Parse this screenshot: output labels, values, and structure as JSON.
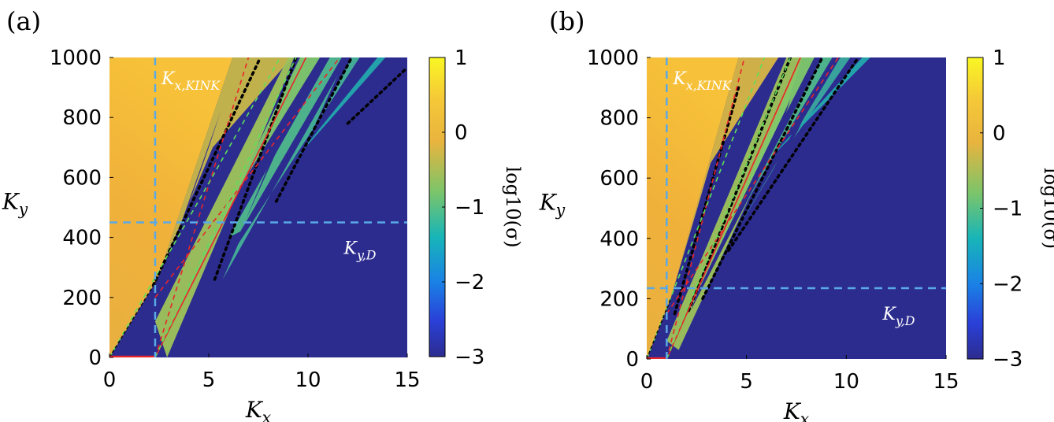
{
  "chart_data": [
    {
      "type": "heatmap",
      "panel_label": "(a)",
      "xlabel": "K_x",
      "ylabel": "K_y",
      "xlim": [
        0,
        15
      ],
      "ylim": [
        0,
        1000
      ],
      "x_ticks": [
        "0",
        "5",
        "10",
        "15"
      ],
      "y_ticks": [
        "0",
        "200",
        "400",
        "600",
        "800",
        "1000"
      ],
      "colorbar": {
        "label": "log10(σ)",
        "range": [
          -3,
          1
        ],
        "ticks": [
          "1",
          "0",
          "−1",
          "−2",
          "−3"
        ]
      },
      "annotations": [
        {
          "text": "K_x,KINK",
          "kind": "vertical-dashed-line",
          "value": 2.3
        },
        {
          "text": "K_y,D",
          "kind": "horizontal-dashed-line",
          "value": 450
        }
      ]
    },
    {
      "type": "heatmap",
      "panel_label": "(b)",
      "xlabel": "K_x",
      "ylabel": "K_y",
      "xlim": [
        0,
        15
      ],
      "ylim": [
        0,
        1000
      ],
      "x_ticks": [
        "0",
        "5",
        "10",
        "15"
      ],
      "y_ticks": [
        "0",
        "200",
        "400",
        "600",
        "800",
        "1000"
      ],
      "colorbar": {
        "label": "log10(σ)",
        "range": [
          -3,
          1
        ],
        "ticks": [
          "1",
          "0",
          "−1",
          "−2",
          "−3"
        ]
      },
      "annotations": [
        {
          "text": "K_x,KINK",
          "kind": "vertical-dashed-line",
          "value": 1.0
        },
        {
          "text": "K_y,D",
          "kind": "horizontal-dashed-line",
          "value": 235
        }
      ]
    }
  ]
}
